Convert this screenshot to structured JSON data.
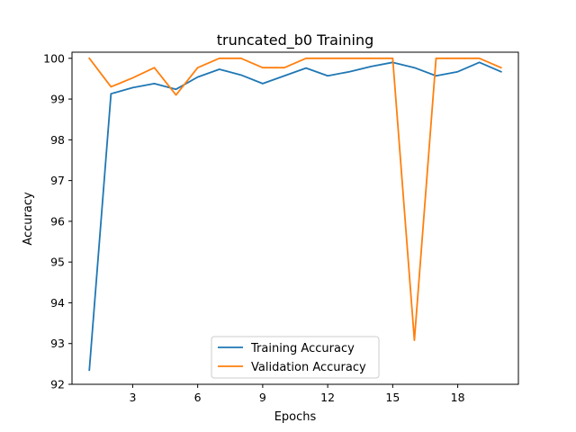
{
  "chart_data": {
    "type": "line",
    "title": "truncated_b0 Training",
    "xlabel": "Epochs",
    "ylabel": "Accuracy",
    "xlim": [
      0.2,
      20.8
    ],
    "ylim": [
      92,
      100.15
    ],
    "xticks": [
      3,
      6,
      9,
      12,
      15,
      18
    ],
    "yticks": [
      92,
      93,
      94,
      95,
      96,
      97,
      98,
      99,
      100
    ],
    "grid": false,
    "legend_position": "lower center",
    "x": [
      1,
      2,
      3,
      4,
      5,
      6,
      7,
      8,
      9,
      10,
      11,
      12,
      13,
      14,
      15,
      16,
      17,
      18,
      19,
      20
    ],
    "series": [
      {
        "name": "Training Accuracy",
        "color": "#1f77b4",
        "values": [
          92.35,
          99.13,
          99.28,
          99.38,
          99.24,
          99.54,
          99.73,
          99.59,
          99.38,
          99.57,
          99.76,
          99.57,
          99.67,
          99.8,
          99.9,
          99.77,
          99.57,
          99.67,
          99.9,
          99.67
        ]
      },
      {
        "name": "Validation Accuracy",
        "color": "#ff7f0e",
        "values": [
          100.0,
          99.3,
          99.52,
          99.77,
          99.1,
          99.77,
          100.0,
          100.0,
          99.77,
          99.77,
          100.0,
          100.0,
          100.0,
          100.0,
          100.0,
          93.08,
          100.0,
          100.0,
          100.0,
          99.77
        ]
      }
    ]
  }
}
